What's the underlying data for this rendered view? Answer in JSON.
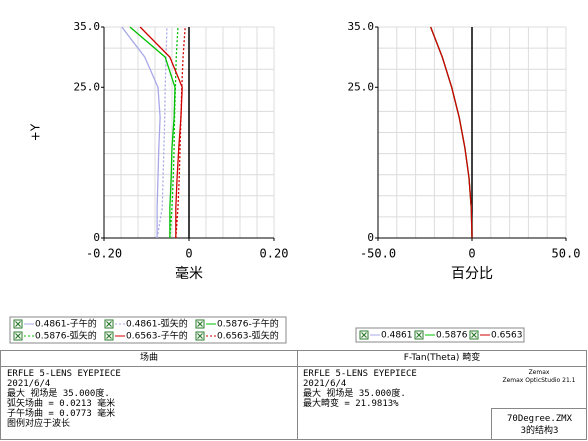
{
  "chart_data": [
    {
      "type": "line",
      "x_label": "毫米",
      "y_label": "+Y",
      "xlim": [
        -0.2,
        0.2
      ],
      "ylim": [
        0,
        35
      ],
      "xticks": [
        {
          "value": -0.2,
          "label": "-0.20"
        },
        0,
        {
          "value": 0.2,
          "label": "0.20"
        }
      ],
      "yticks": [
        0,
        {
          "value": 25,
          "label": "25.0"
        },
        {
          "value": 35,
          "label": "35.0"
        }
      ],
      "grid": true,
      "series": [
        {
          "name": "0.4861-子午的",
          "color": "#a8a8e8",
          "style": "solid",
          "x": [
            -0.075,
            -0.075,
            -0.073,
            -0.071,
            -0.068,
            -0.073,
            -0.104,
            -0.158
          ],
          "values": [
            0,
            5,
            10,
            15,
            20,
            25,
            30,
            35
          ]
        },
        {
          "name": "0.4861-弧矢的",
          "color": "#a8a8e8",
          "style": "dotted",
          "x": [
            -0.075,
            -0.063,
            -0.061,
            -0.059,
            -0.057,
            -0.056,
            -0.054,
            -0.052
          ],
          "values": [
            0,
            5,
            10,
            15,
            20,
            25,
            30,
            35
          ]
        },
        {
          "name": "0.5876-子午的",
          "color": "#00c000",
          "style": "solid",
          "x": [
            -0.045,
            -0.045,
            -0.042,
            -0.04,
            -0.035,
            -0.033,
            -0.056,
            -0.139
          ],
          "values": [
            0,
            5,
            10,
            15,
            20,
            25,
            30,
            35
          ]
        },
        {
          "name": "0.5876-弧矢的",
          "color": "#00c000",
          "style": "dotted",
          "x": [
            -0.045,
            -0.04,
            -0.037,
            -0.035,
            -0.034,
            -0.032,
            -0.03,
            -0.026
          ],
          "values": [
            0,
            5,
            10,
            15,
            20,
            25,
            30,
            35
          ]
        },
        {
          "name": "0.6563-子午的",
          "color": "#d00000",
          "style": "solid",
          "x": [
            -0.031,
            -0.031,
            -0.028,
            -0.024,
            -0.019,
            -0.016,
            -0.045,
            -0.115
          ],
          "values": [
            0,
            5,
            10,
            15,
            20,
            25,
            30,
            35
          ]
        },
        {
          "name": "0.6563-弧矢的",
          "color": "#d00000",
          "style": "dotted",
          "x": [
            -0.031,
            -0.026,
            -0.023,
            -0.021,
            -0.019,
            -0.017,
            -0.014,
            -0.009
          ],
          "values": [
            0,
            5,
            10,
            15,
            20,
            25,
            30,
            35
          ]
        }
      ]
    },
    {
      "type": "line",
      "x_label": "百分比",
      "xlim": [
        -50,
        50
      ],
      "ylim": [
        0,
        35
      ],
      "xticks": [
        {
          "value": -50,
          "label": "-50.0"
        },
        0,
        {
          "value": 50,
          "label": "50.0"
        }
      ],
      "yticks": [
        0,
        {
          "value": 25,
          "label": "25.0"
        },
        {
          "value": 35,
          "label": "35.0"
        }
      ],
      "grid": true,
      "series": [
        {
          "name": "0.4861",
          "color": "#a8a8e8",
          "style": "solid",
          "x": [
            0,
            -0.4,
            -1.6,
            -3.8,
            -6.8,
            -10.8,
            -15.8,
            -22
          ],
          "values": [
            0,
            5,
            10,
            15,
            20,
            25,
            30,
            35
          ]
        },
        {
          "name": "0.5876",
          "color": "#00c000",
          "style": "solid",
          "x": [
            0,
            -0.4,
            -1.6,
            -3.8,
            -6.8,
            -10.8,
            -15.8,
            -22
          ],
          "values": [
            0,
            5,
            10,
            15,
            20,
            25,
            30,
            35
          ]
        },
        {
          "name": "0.6563",
          "color": "#d00000",
          "style": "solid",
          "x": [
            0,
            -0.4,
            -1.6,
            -3.8,
            -6.8,
            -10.8,
            -15.8,
            -22
          ],
          "values": [
            0,
            5,
            10,
            15,
            20,
            25,
            30,
            35
          ]
        }
      ]
    }
  ],
  "info_panel": {
    "left": {
      "title": "场曲",
      "lines": [
        "ERFLE 5-LENS EYEPIECE",
        "2021/6/4",
        "最大 视场是 35.000度.",
        "弧矢场曲 = 0.0213 毫米",
        "子午场曲 = 0.0773 毫米",
        "图例对应于波长"
      ]
    },
    "right": {
      "title": "F-Tan(Theta) 畸变",
      "lines": [
        "ERFLE 5-LENS EYEPIECE",
        "2021/6/4",
        "最大 视场是 35.000度.",
        "最大畸变 = 21.9813%"
      ]
    },
    "brand": [
      "Zemax",
      "Zemax OpticStudio 21.1"
    ],
    "file": [
      "70Degree.ZMX",
      "3的结构3"
    ]
  }
}
